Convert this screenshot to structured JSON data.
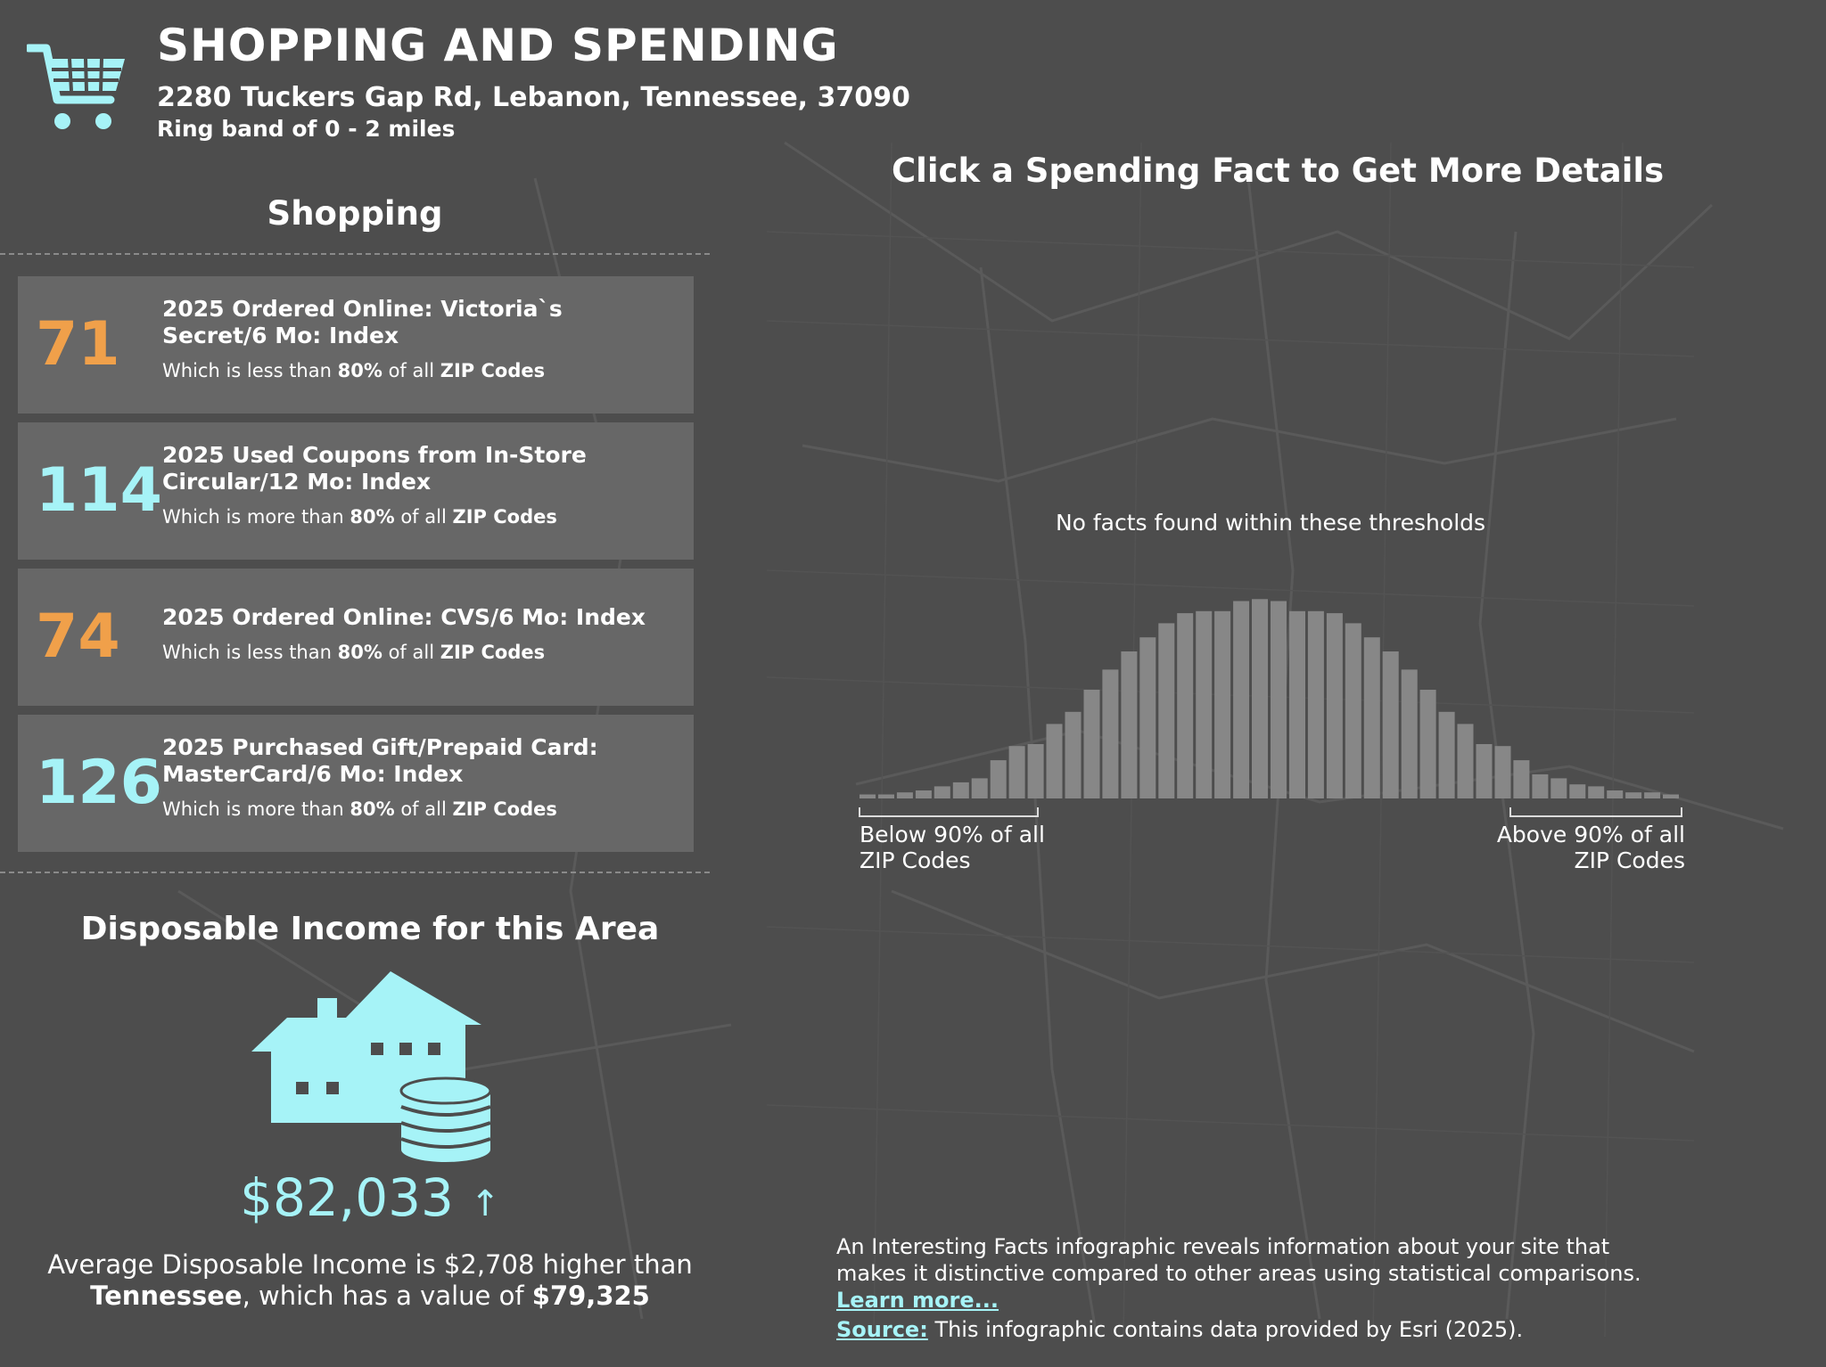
{
  "header": {
    "title": "SHOPPING AND SPENDING",
    "address": "2280 Tuckers Gap Rd, Lebanon, Tennessee, 37090",
    "ring_band": "Ring band of 0 - 2 miles",
    "icon": "shopping-cart-icon"
  },
  "shopping": {
    "heading": "Shopping",
    "facts": [
      {
        "value": "71",
        "title": "2025 Ordered Online: Victoria`s Secret/6 Mo: Index",
        "note_prefix": "Which is less than",
        "percent": "80%",
        "note_mid": "of all",
        "geo": "ZIP Codes",
        "level": "low"
      },
      {
        "value": "114",
        "title": "2025 Used Coupons from In-Store Circular/12 Mo: Index",
        "note_prefix": "Which is more than",
        "percent": "80%",
        "note_mid": "of all",
        "geo": "ZIP Codes",
        "level": "high"
      },
      {
        "value": "74",
        "title": "2025 Ordered Online: CVS/6 Mo: Index",
        "note_prefix": "Which is less than",
        "percent": "80%",
        "note_mid": "of all",
        "geo": "ZIP Codes",
        "level": "low"
      },
      {
        "value": "126",
        "title": "2025 Purchased Gift/Prepaid Card: MasterCard/6 Mo: Index",
        "note_prefix": "Which is more than",
        "percent": "80%",
        "note_mid": "of all",
        "geo": "ZIP Codes",
        "level": "high"
      }
    ]
  },
  "income": {
    "heading": "Disposable Income for this Area",
    "icon": "house-with-coins-icon",
    "value": "$82,033",
    "trend_arrow": "↑",
    "desc_line1": "Average Disposable Income is $2,708 higher than",
    "desc_state": "Tennessee",
    "desc_mid": ", which has a value of",
    "desc_state_value": "$79,325"
  },
  "spending": {
    "heading": "Click a Spending Fact to Get More Details",
    "no_facts": "No facts found within these thresholds",
    "below_label_1": "Below 90% of all",
    "below_label_2": "ZIP Codes",
    "above_label_1": "Above 90% of all",
    "above_label_2": "ZIP Codes"
  },
  "chart_data": {
    "type": "bar",
    "title": "",
    "xlabel": "",
    "ylabel": "",
    "values": [
      0.02,
      0.02,
      0.03,
      0.04,
      0.06,
      0.08,
      0.1,
      0.19,
      0.26,
      0.27,
      0.37,
      0.43,
      0.54,
      0.64,
      0.73,
      0.8,
      0.87,
      0.92,
      0.93,
      0.93,
      0.98,
      0.99,
      0.98,
      0.93,
      0.93,
      0.92,
      0.87,
      0.8,
      0.73,
      0.64,
      0.54,
      0.43,
      0.37,
      0.27,
      0.26,
      0.19,
      0.12,
      0.1,
      0.07,
      0.06,
      0.04,
      0.03,
      0.03,
      0.02
    ],
    "bar_color": "#878787",
    "ylim": [
      0,
      1
    ]
  },
  "footer": {
    "desc": "An Interesting Facts infographic reveals information about your site that makes it distinctive compared to other areas using statistical comparisons.",
    "learn_more": "Learn more...",
    "source_label": "Source:",
    "source_text": "This infographic contains data provided by Esri (2025)."
  },
  "colors": {
    "background": "#4d4d4d",
    "card": "#676767",
    "accent_cyan": "#a6f3f7",
    "accent_orange": "#f0a04a"
  }
}
